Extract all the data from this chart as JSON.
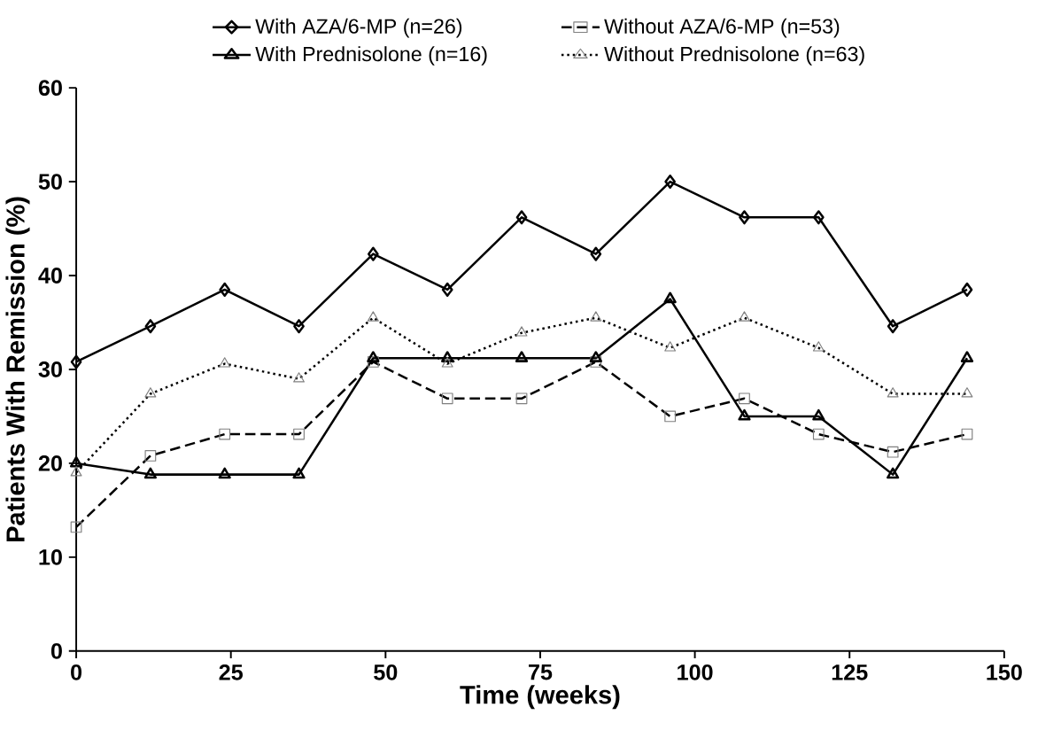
{
  "chart_data": {
    "type": "line",
    "xlabel": "Time (weeks)",
    "ylabel": "Patients With Remission (%)",
    "x": [
      0,
      12,
      24,
      36,
      48,
      60,
      72,
      84,
      96,
      108,
      120,
      132,
      144
    ],
    "series": [
      {
        "name": "With AZA/6-MP (n=26)",
        "color": "#000000",
        "marker": "diamond",
        "line_style": "solid",
        "values": [
          30.8,
          34.6,
          38.5,
          34.6,
          42.3,
          38.5,
          46.2,
          42.3,
          50.0,
          46.2,
          46.2,
          34.6,
          38.5
        ]
      },
      {
        "name": "Without AZA/6-MP (n=53)",
        "color": "#000000",
        "marker": "square",
        "line_style": "dashed",
        "values": [
          13.2,
          20.8,
          23.1,
          23.1,
          30.8,
          26.9,
          26.9,
          30.8,
          25.0,
          26.9,
          23.1,
          21.2,
          23.1
        ]
      },
      {
        "name": "With Prednisolone (n=16)",
        "color": "#000000",
        "marker": "triangle",
        "line_style": "solid",
        "values": [
          20.0,
          18.8,
          18.8,
          18.8,
          31.2,
          31.2,
          31.2,
          31.2,
          37.5,
          25.0,
          25.0,
          18.8,
          31.2
        ]
      },
      {
        "name": "Without Prednisolone (n=63)",
        "color": "#000000",
        "marker": "triangle",
        "line_style": "dotted",
        "values": [
          19.0,
          27.4,
          30.6,
          29.0,
          35.5,
          30.6,
          33.9,
          35.5,
          32.3,
          35.5,
          32.3,
          27.4,
          27.4
        ]
      }
    ],
    "xlim": [
      0,
      150
    ],
    "xticks": [
      0,
      25,
      50,
      75,
      100,
      125,
      150
    ],
    "ylim": [
      0,
      60
    ],
    "yticks": [
      0,
      10,
      20,
      30,
      40,
      50,
      60
    ],
    "grid": false,
    "legend": "top"
  }
}
